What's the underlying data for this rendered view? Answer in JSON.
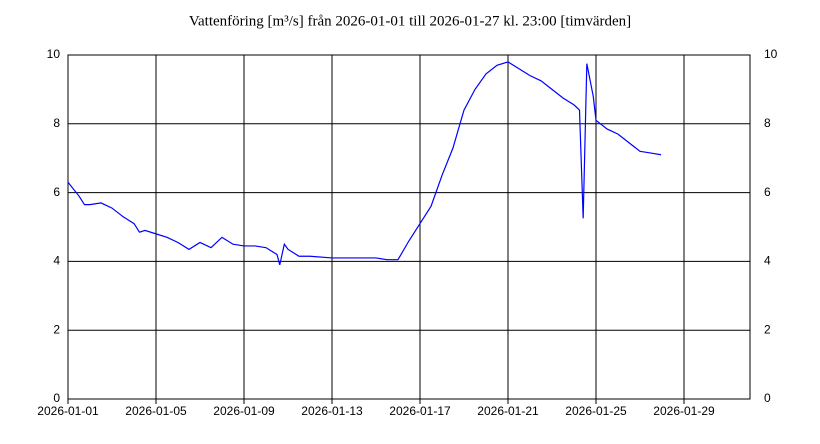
{
  "chart_data": {
    "type": "line",
    "title": "Vattenföring [m³/s] från 2026-01-01 till 2026-01-27 kl. 23:00 [timvärden]",
    "x": [
      "2026-01-01 00:00",
      "2026-01-01 12:00",
      "2026-01-01 18:00",
      "2026-01-02 00:00",
      "2026-01-02 12:00",
      "2026-01-03 00:00",
      "2026-01-03 12:00",
      "2026-01-04 00:00",
      "2026-01-04 06:00",
      "2026-01-04 12:00",
      "2026-01-05 00:00",
      "2026-01-05 12:00",
      "2026-01-06 00:00",
      "2026-01-06 12:00",
      "2026-01-07 00:00",
      "2026-01-07 12:00",
      "2026-01-08 00:00",
      "2026-01-08 12:00",
      "2026-01-09 00:00",
      "2026-01-09 12:00",
      "2026-01-10 00:00",
      "2026-01-10 12:00",
      "2026-01-10 15:00",
      "2026-01-10 20:00",
      "2026-01-11 00:00",
      "2026-01-11 12:00",
      "2026-01-12 00:00",
      "2026-01-13 00:00",
      "2026-01-14 00:00",
      "2026-01-15 00:00",
      "2026-01-15 12:00",
      "2026-01-16 00:00",
      "2026-01-16 12:00",
      "2026-01-17 00:00",
      "2026-01-17 12:00",
      "2026-01-18 00:00",
      "2026-01-18 12:00",
      "2026-01-19 00:00",
      "2026-01-19 12:00",
      "2026-01-20 00:00",
      "2026-01-20 12:00",
      "2026-01-21 00:00",
      "2026-01-21 12:00",
      "2026-01-22 00:00",
      "2026-01-22 12:00",
      "2026-01-23 00:00",
      "2026-01-23 12:00",
      "2026-01-24 00:00",
      "2026-01-24 06:00",
      "2026-01-24 10:00",
      "2026-01-24 14:00",
      "2026-01-24 21:00",
      "2026-01-25 00:00",
      "2026-01-25 12:00",
      "2026-01-26 00:00",
      "2026-01-26 12:00",
      "2026-01-27 00:00",
      "2026-01-27 12:00",
      "2026-01-27 23:00"
    ],
    "series": [
      {
        "color": "#0000ff",
        "values": [
          6.3,
          5.9,
          5.65,
          5.65,
          5.7,
          5.55,
          5.3,
          5.1,
          4.85,
          4.9,
          4.8,
          4.7,
          4.55,
          4.35,
          4.55,
          4.4,
          4.7,
          4.5,
          4.45,
          4.45,
          4.4,
          4.2,
          3.9,
          4.5,
          4.35,
          4.15,
          4.15,
          4.1,
          4.1,
          4.1,
          4.05,
          4.05,
          4.6,
          5.1,
          5.6,
          6.5,
          7.3,
          8.4,
          9.0,
          9.45,
          9.7,
          9.8,
          9.6,
          9.4,
          9.25,
          9.0,
          8.75,
          8.55,
          8.4,
          5.25,
          9.75,
          8.8,
          8.1,
          7.85,
          7.7,
          7.45,
          7.2,
          7.15,
          7.1
        ]
      }
    ],
    "xlim": [
      "2026-01-01",
      "2026-02-01"
    ],
    "xticks": [
      "2026-01-01",
      "2026-01-05",
      "2026-01-09",
      "2026-01-13",
      "2026-01-17",
      "2026-01-21",
      "2026-01-25",
      "2026-01-29"
    ],
    "ylim": [
      0,
      10
    ],
    "yticks": [
      0,
      2,
      4,
      6,
      8,
      10
    ],
    "grid": true
  }
}
